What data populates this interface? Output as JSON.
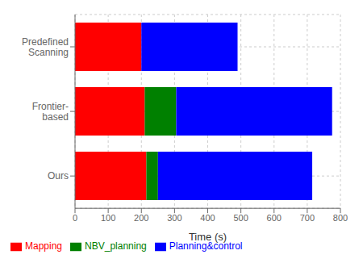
{
  "chart_data": {
    "type": "bar",
    "orientation": "horizontal",
    "stacked": true,
    "categories": [
      "Predefined\nScanning",
      "Frontier-\nbased",
      "Ours"
    ],
    "series": [
      {
        "name": "Mapping",
        "color": "#ff0000",
        "values": [
          200,
          210,
          215
        ]
      },
      {
        "name": "NBV_planning",
        "color": "#008000",
        "values": [
          null,
          95,
          35
        ]
      },
      {
        "name": "Planning&control",
        "color": "#0000ff",
        "values": [
          290,
          470,
          465
        ]
      }
    ],
    "xlim": [
      0,
      800
    ],
    "xticks": [
      0,
      100,
      200,
      300,
      400,
      500,
      600,
      700,
      800
    ],
    "xlabel": "Time (s)",
    "grid": true,
    "legend": "lower left"
  }
}
